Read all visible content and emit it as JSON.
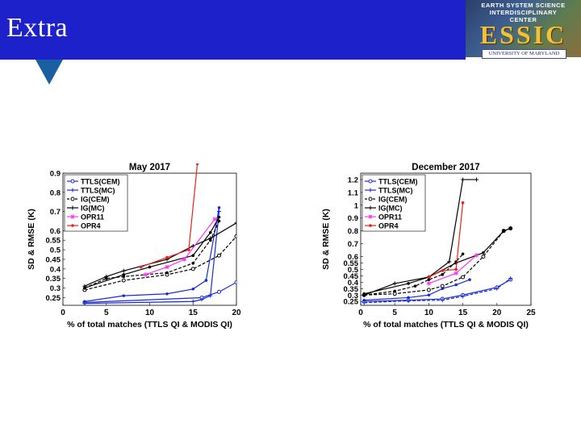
{
  "slide": {
    "title": "Extra"
  },
  "logo": {
    "top_lines": [
      "EARTH SYSTEM SCIENCE",
      "INTERDISCIPLINARY",
      "CENTER"
    ],
    "word": "ESSIC",
    "bottom": "UNIVERSITY OF MARYLAND"
  },
  "colors": {
    "banner": "#1c21c9",
    "pointer": "#1b5fa3"
  },
  "chart_data": [
    {
      "type": "line",
      "title": "May 2017",
      "xlabel": "% of total matches (TTLS QI & MODIS QI)",
      "ylabel": "SD & RMSE (K)",
      "xlim": [
        0,
        20
      ],
      "ylim": [
        0.21,
        0.9
      ],
      "xticks": [
        0,
        5,
        10,
        15,
        20
      ],
      "yticks": [
        0.25,
        0.3,
        0.35,
        0.4,
        0.45,
        0.5,
        0.55,
        0.6,
        0.7,
        0.8,
        0.9
      ],
      "ytick_labels": [
        "0.25",
        "0.3",
        "0.35",
        "0.4",
        "0.45",
        "0.5",
        "0.55",
        "0.6",
        "0.7",
        "0.8",
        "0.9"
      ],
      "legend_position": "top-left",
      "legend": [
        "TTLS(CEM)",
        "TTLS(MC)",
        "IG(CEM)",
        "IG(MC)",
        "OPR11",
        "OPR4"
      ],
      "series": [
        {
          "name": "TTLS(CEM)",
          "color": "#1a2ad6",
          "style": "solid",
          "marker": "circle",
          "x": [
            2.5,
            16,
            18,
            20
          ],
          "y": [
            0.225,
            0.25,
            0.28,
            0.33
          ]
        },
        {
          "name": "TTLS(CEM)",
          "color": "#1a2ad6",
          "style": "solid",
          "marker": "dot",
          "x": [
            2.5,
            7,
            12,
            15,
            16.5,
            18
          ],
          "y": [
            0.23,
            0.26,
            0.27,
            0.295,
            0.34,
            0.72
          ]
        },
        {
          "name": "TTLS(MC)",
          "color": "#1a2ad6",
          "style": "solid",
          "marker": "plus",
          "x": [
            2.5,
            15,
            16,
            17,
            18
          ],
          "y": [
            0.22,
            0.23,
            0.24,
            0.26,
            0.7
          ]
        },
        {
          "name": "IG(CEM)",
          "color": "#000000",
          "style": "dashed",
          "marker": "circle",
          "x": [
            2.5,
            7,
            12,
            15,
            18,
            20
          ],
          "y": [
            0.29,
            0.34,
            0.37,
            0.4,
            0.47,
            0.57
          ]
        },
        {
          "name": "IG(CEM)",
          "color": "#000000",
          "style": "dashed",
          "marker": "dot",
          "x": [
            2.5,
            5,
            7,
            12,
            15,
            17,
            18
          ],
          "y": [
            0.3,
            0.35,
            0.36,
            0.38,
            0.43,
            0.55,
            0.65
          ]
        },
        {
          "name": "IG(MC)",
          "color": "#000000",
          "style": "solid",
          "marker": "plus",
          "x": [
            2.5,
            5,
            7,
            12,
            15,
            17,
            20
          ],
          "y": [
            0.31,
            0.36,
            0.39,
            0.45,
            0.52,
            0.56,
            0.64
          ]
        },
        {
          "name": "IG(MC)",
          "color": "#000000",
          "style": "solid",
          "marker": "dot",
          "x": [
            2.5,
            7,
            10,
            15,
            17,
            18
          ],
          "y": [
            0.3,
            0.37,
            0.41,
            0.47,
            0.59,
            0.67
          ]
        },
        {
          "name": "OPR11",
          "color": "#ff33ff",
          "style": "solid",
          "marker": "star",
          "x": [
            9.5,
            12,
            14,
            17.5
          ],
          "y": [
            0.37,
            0.41,
            0.45,
            0.66
          ]
        },
        {
          "name": "OPR4",
          "color": "#e8221b",
          "style": "solid",
          "marker": "dot",
          "x": [
            9,
            12,
            14.5,
            15.5
          ],
          "y": [
            0.41,
            0.46,
            0.5,
            0.95
          ]
        }
      ]
    },
    {
      "type": "line",
      "title": "December 2017",
      "xlabel": "% of total matches (TTLS QI & MODIS QI)",
      "ylabel": "SD & RMSE (K)",
      "xlim": [
        0,
        25
      ],
      "ylim": [
        0.22,
        1.25
      ],
      "xticks": [
        0,
        5,
        10,
        15,
        20,
        25
      ],
      "yticks": [
        0.25,
        0.3,
        0.35,
        0.4,
        0.45,
        0.5,
        0.55,
        0.6,
        0.7,
        0.8,
        0.9,
        1,
        1.1,
        1.2
      ],
      "ytick_labels": [
        "0.25",
        "0.3",
        "0.35",
        "0.4",
        "0.45",
        "0.5",
        "0.55",
        "0.6",
        "0.7",
        "0.8",
        "0.9",
        "1",
        "1.1",
        "1.2"
      ],
      "legend_position": "top-left",
      "legend": [
        "TTLS(CEM)",
        "TTLS(MC)",
        "IG(CEM)",
        "IG(MC)",
        "OPR11",
        "OPR4"
      ],
      "series": [
        {
          "name": "TTLS(CEM)",
          "color": "#1a2ad6",
          "style": "solid",
          "marker": "circle",
          "x": [
            0.5,
            7,
            12,
            15,
            20,
            22
          ],
          "y": [
            0.25,
            0.26,
            0.27,
            0.3,
            0.36,
            0.42
          ]
        },
        {
          "name": "TTLS(CEM)",
          "color": "#1a2ad6",
          "style": "solid",
          "marker": "dot",
          "x": [
            0.5,
            7,
            10,
            12,
            14,
            16
          ],
          "y": [
            0.26,
            0.28,
            0.3,
            0.35,
            0.38,
            0.42
          ]
        },
        {
          "name": "TTLS(MC)",
          "color": "#1a2ad6",
          "style": "dashed",
          "marker": "plus",
          "x": [
            0.5,
            7,
            12,
            15,
            20,
            22
          ],
          "y": [
            0.24,
            0.255,
            0.26,
            0.29,
            0.35,
            0.43
          ]
        },
        {
          "name": "IG(CEM)",
          "color": "#000000",
          "style": "dashed",
          "marker": "circle",
          "x": [
            0.5,
            5,
            10,
            12,
            15,
            18,
            21,
            22
          ],
          "y": [
            0.3,
            0.31,
            0.34,
            0.37,
            0.44,
            0.6,
            0.8,
            0.82
          ]
        },
        {
          "name": "IG(CEM)",
          "color": "#000000",
          "style": "dashed",
          "marker": "dot",
          "x": [
            0.5,
            5,
            8,
            10,
            12,
            14,
            15
          ],
          "y": [
            0.3,
            0.33,
            0.37,
            0.42,
            0.46,
            0.56,
            0.62
          ]
        },
        {
          "name": "IG(MC)",
          "color": "#000000",
          "style": "solid",
          "marker": "plus",
          "x": [
            0.5,
            5,
            10,
            13,
            15,
            17
          ],
          "y": [
            0.3,
            0.39,
            0.44,
            0.56,
            1.2,
            1.2
          ]
        },
        {
          "name": "IG(MC)",
          "color": "#000000",
          "style": "solid",
          "marker": "dot",
          "x": [
            0.5,
            7,
            10,
            14,
            18,
            21,
            22
          ],
          "y": [
            0.31,
            0.39,
            0.44,
            0.55,
            0.63,
            0.8,
            0.82
          ]
        },
        {
          "name": "OPR11",
          "color": "#ff33ff",
          "style": "solid",
          "marker": "star",
          "x": [
            10,
            14,
            17
          ],
          "y": [
            0.39,
            0.47,
            0.61
          ]
        },
        {
          "name": "OPR4",
          "color": "#e8221b",
          "style": "solid",
          "marker": "dot",
          "x": [
            10,
            12,
            14,
            15
          ],
          "y": [
            0.44,
            0.49,
            0.5,
            1.02
          ]
        }
      ]
    }
  ]
}
